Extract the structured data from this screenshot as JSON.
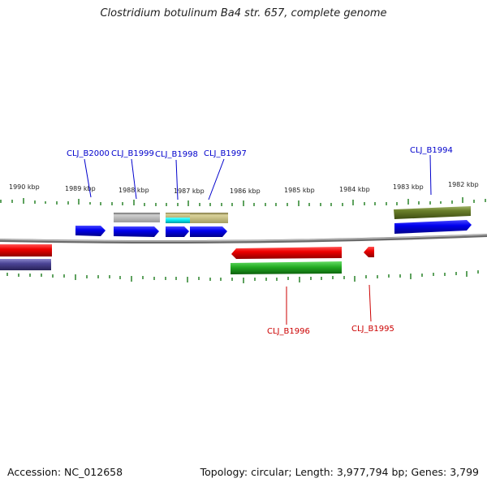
{
  "title": "Clostridium botulinum Ba4 str. 657, complete genome",
  "footer": {
    "accession": "Accession: NC_012658",
    "summary": "Topology: circular; Length: 3,977,794 bp; Genes: 3,799"
  },
  "scale_labels": [
    "1990 kbp",
    "1989 kbp",
    "1988 kbp",
    "1987 kbp",
    "1986 kbp",
    "1985 kbp",
    "1984 kbp",
    "1983 kbp",
    "1982 kbp"
  ],
  "genes": {
    "forward": [
      {
        "name": "CLJ_B2000",
        "color": "#0000cc"
      },
      {
        "name": "CLJ_B1999",
        "color": "#0000cc"
      },
      {
        "name": "CLJ_B1998",
        "color": "#0000cc"
      },
      {
        "name": "CLJ_B1997",
        "color": "#0000cc"
      },
      {
        "name": "CLJ_B1994",
        "color": "#0000cc"
      }
    ],
    "reverse": [
      {
        "name": "CLJ_B1996",
        "color": "#cc0000"
      },
      {
        "name": "CLJ_B1995",
        "color": "#cc0000"
      }
    ]
  },
  "colors": {
    "cds_forward": "#0000ee",
    "cds_reverse": "#ee0000",
    "tick": "#1a7a1a",
    "backbone": "#8c8c8c"
  }
}
